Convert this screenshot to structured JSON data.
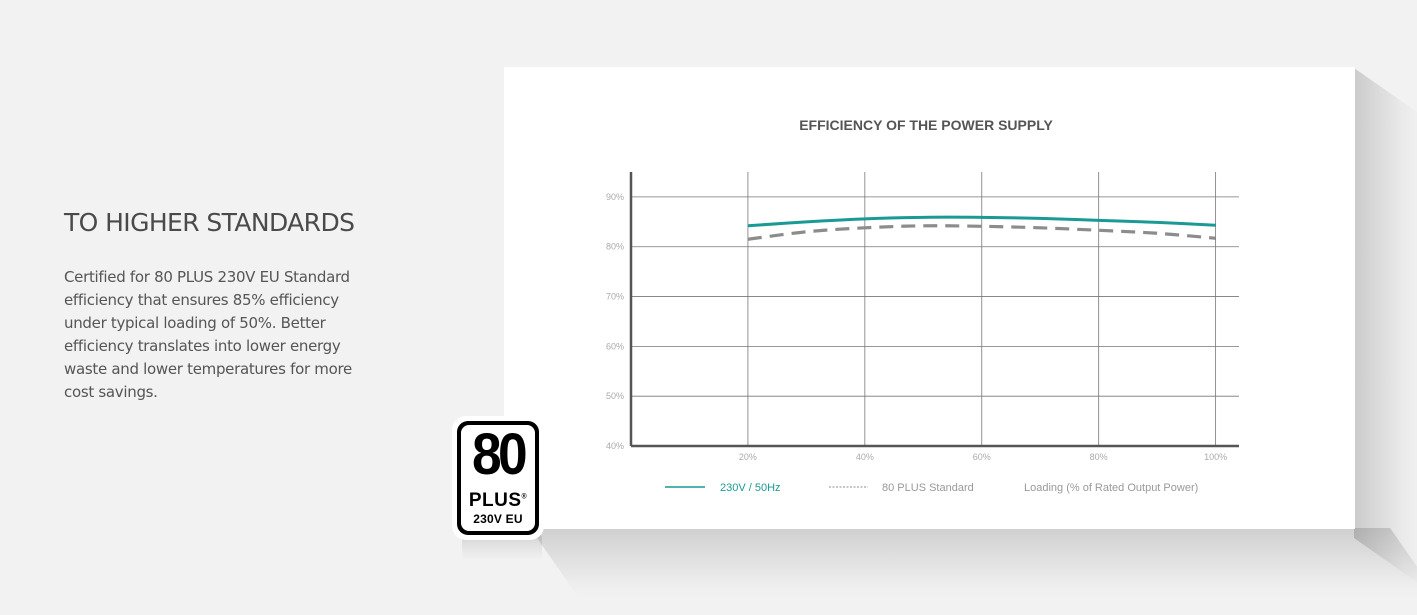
{
  "section": {
    "heading": "TO HIGHER STANDARDS",
    "body": "Certified for 80 PLUS 230V EU Standard efficiency that ensures 85% efficiency under typical loading of 50%. Better efficiency translates into lower energy waste and lower temperatures for more cost savings."
  },
  "badge": {
    "number": "80",
    "plus": "PLUS",
    "registered": "®",
    "rating": "230V EU"
  },
  "chart_data": {
    "type": "line",
    "title": "EFFICIENCY OF THE POWER SUPPLY",
    "xlabel": "Loading (% of Rated Output Power)",
    "ylabel": "",
    "x": [
      20,
      30,
      40,
      50,
      60,
      70,
      80,
      90,
      100
    ],
    "x_tick_values": [
      20,
      40,
      60,
      80,
      100
    ],
    "x_tick_labels": [
      "20%",
      "40%",
      "60%",
      "80%",
      "100%"
    ],
    "xlim": [
      0,
      104
    ],
    "y_tick_values": [
      40,
      50,
      60,
      70,
      80,
      90
    ],
    "y_tick_labels": [
      "40%",
      "50%",
      "60%",
      "70%",
      "80%",
      "90%"
    ],
    "ylim": [
      40,
      95
    ],
    "grid": true,
    "legend_position": "bottom",
    "series": [
      {
        "name": "230V / 50Hz",
        "values": [
          84.2,
          85.0,
          85.6,
          85.9,
          85.9,
          85.7,
          85.3,
          84.9,
          84.3
        ],
        "color": "#1a9a94",
        "style": "solid"
      },
      {
        "name": "80 PLUS Standard",
        "values": [
          81.5,
          83.0,
          83.8,
          84.2,
          84.1,
          83.8,
          83.3,
          82.7,
          81.7
        ],
        "color": "#8c8c8c",
        "style": "dashed"
      }
    ]
  }
}
